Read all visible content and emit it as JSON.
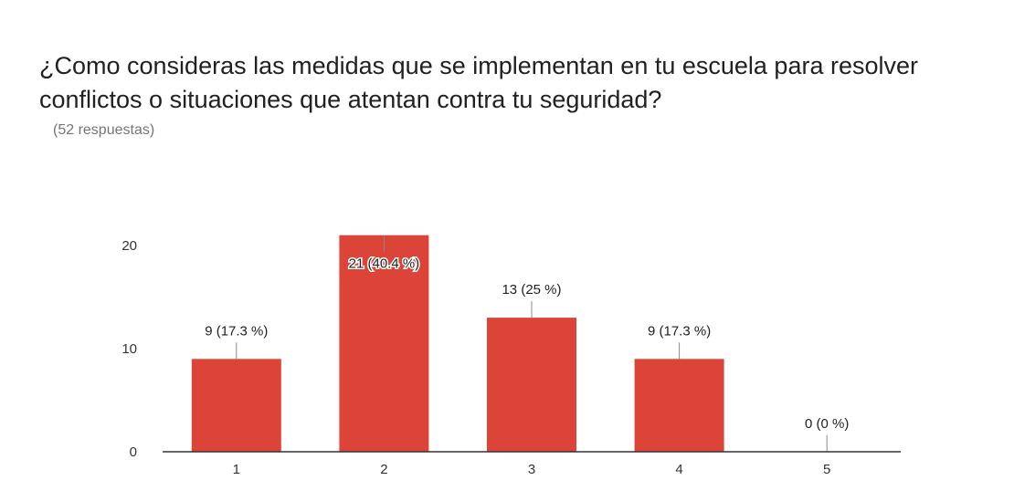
{
  "question": {
    "title": "¿Como consideras las medidas que se implementan en tu escuela para resolver conflictos o situaciones que atentan contra tu seguridad?",
    "response_count": "(52 respuestas)"
  },
  "colors": {
    "bar": "#db4437",
    "axis": "#333333",
    "text": "#212121",
    "subtle": "#757575"
  },
  "chart_data": {
    "type": "bar",
    "categories": [
      "1",
      "2",
      "3",
      "4",
      "5"
    ],
    "values": [
      9,
      21,
      13,
      9,
      0
    ],
    "data_labels": [
      "9 (17.3 %)",
      "21 (40.4 %)",
      "13 (25 %)",
      "9 (17.3 %)",
      "0 (0 %)"
    ],
    "yticks": [
      0,
      10,
      20
    ],
    "ylim": [
      0,
      21
    ],
    "xlabel": "",
    "ylabel": "",
    "grid": false,
    "legend": "none"
  }
}
